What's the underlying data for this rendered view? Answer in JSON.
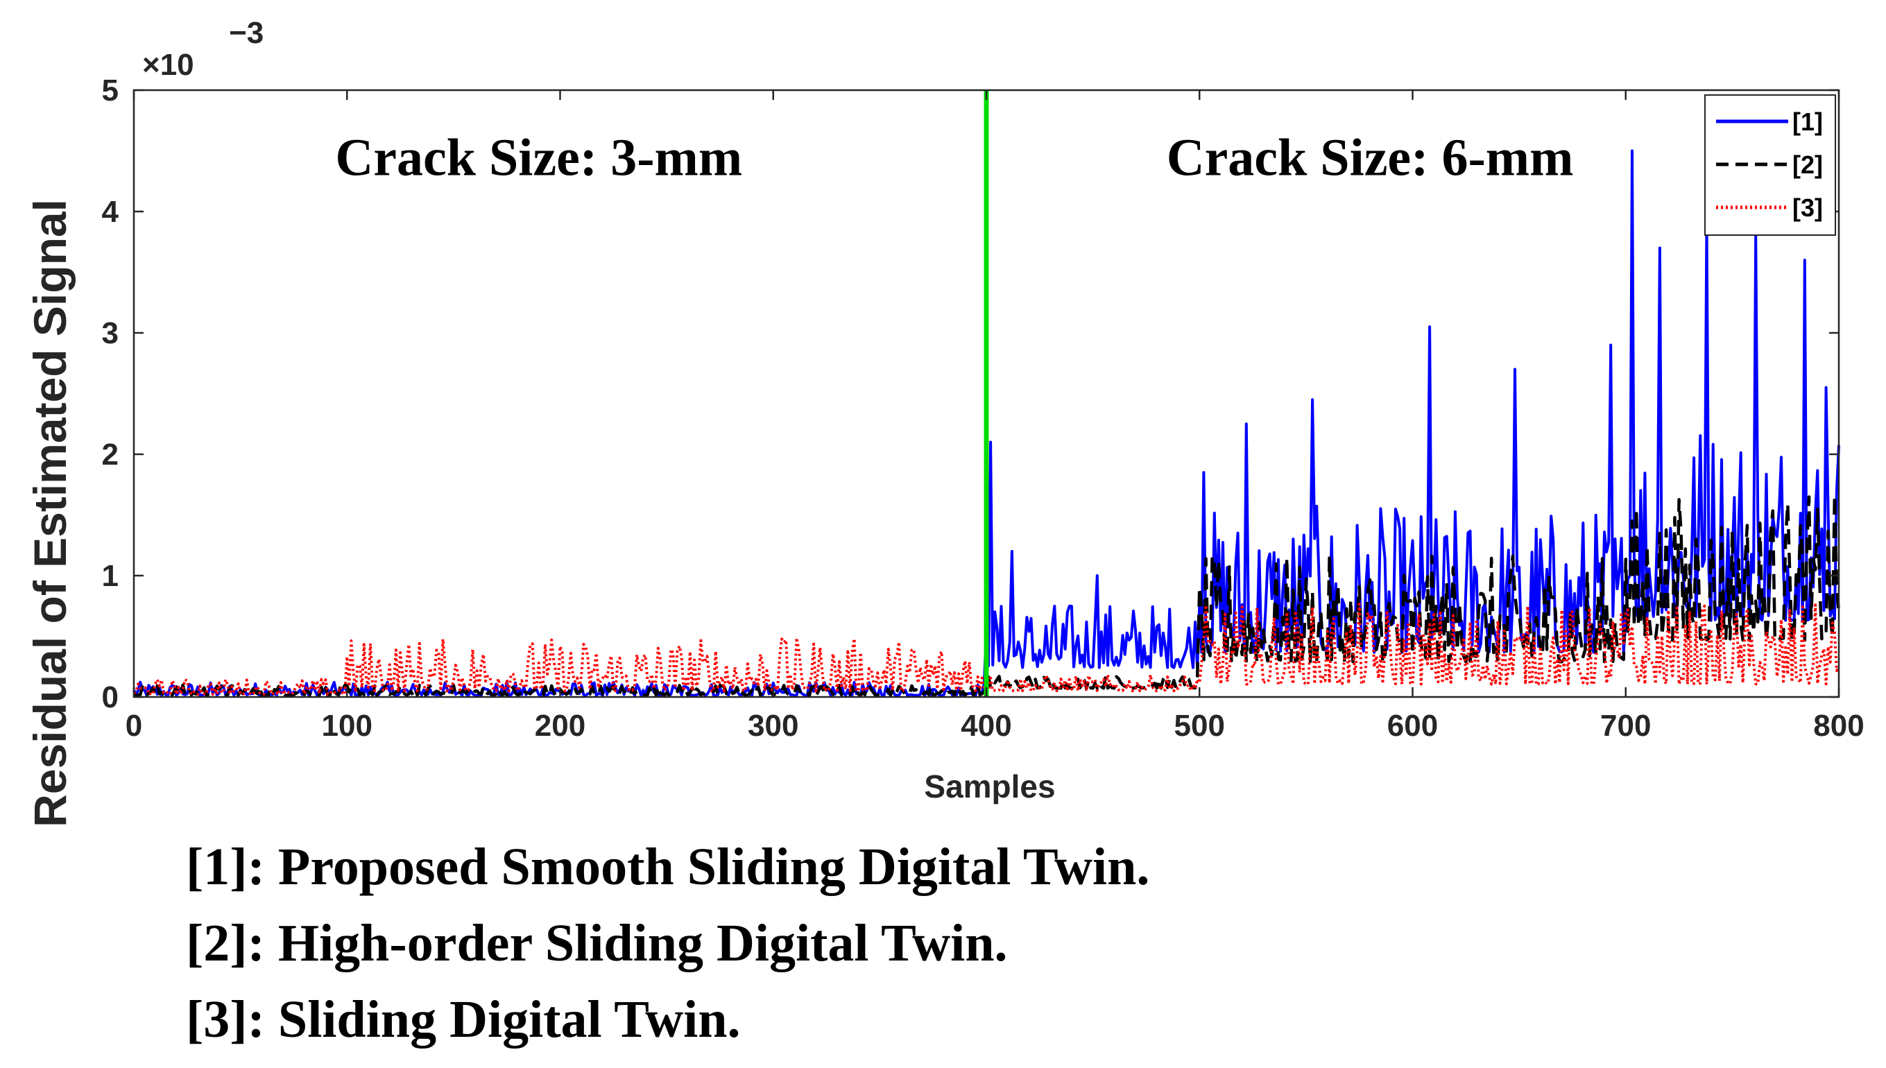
{
  "chart_data": {
    "type": "line",
    "title": "",
    "xlabel": "Samples",
    "ylabel": "Residual of Estimated Signal",
    "y_scale_label": "×10",
    "y_scale_exponent": "−3",
    "xlim": [
      0,
      800
    ],
    "ylim": [
      0,
      5
    ],
    "x_ticks": [
      "0",
      "100",
      "200",
      "300",
      "400",
      "500",
      "600",
      "700",
      "800"
    ],
    "y_ticks": [
      "0",
      "1",
      "2",
      "3",
      "4",
      "5"
    ],
    "divider_x": 400,
    "divider_color": "#00dd00",
    "annotations": [
      {
        "text": "Crack Size: 3-mm",
        "x": 190,
        "y": 4.3
      },
      {
        "text": "Crack Size: 6-mm",
        "x": 580,
        "y": 4.3
      }
    ],
    "legend": {
      "position": "top-right",
      "entries": [
        {
          "label": "[1]",
          "color": "#0000ff",
          "style": "solid"
        },
        {
          "label": "[2]",
          "color": "#000000",
          "style": "dashed"
        },
        {
          "label": "[3]",
          "color": "#ff0000",
          "style": "dotted"
        }
      ]
    },
    "series": [
      {
        "name": "[1]",
        "color": "#0000ff",
        "style": "solid",
        "segments": [
          {
            "x_start": 0,
            "x_end": 400,
            "base": 0.02,
            "amp": 0.05
          },
          {
            "x_start": 400,
            "x_end": 500,
            "base": 0.28,
            "amp": 0.25
          },
          {
            "x_start": 500,
            "x_end": 700,
            "base": 0.45,
            "amp": 0.55
          },
          {
            "x_start": 700,
            "x_end": 800,
            "base": 0.75,
            "amp": 0.8
          }
        ],
        "peaks": [
          {
            "x": 402,
            "y": 2.1
          },
          {
            "x": 412,
            "y": 1.2
          },
          {
            "x": 452,
            "y": 1.0
          },
          {
            "x": 502,
            "y": 1.85
          },
          {
            "x": 522,
            "y": 2.25
          },
          {
            "x": 553,
            "y": 2.45
          },
          {
            "x": 608,
            "y": 3.05
          },
          {
            "x": 648,
            "y": 2.7
          },
          {
            "x": 693,
            "y": 2.9
          },
          {
            "x": 703,
            "y": 4.5
          },
          {
            "x": 716,
            "y": 3.7
          },
          {
            "x": 738,
            "y": 3.9
          },
          {
            "x": 761,
            "y": 3.8
          },
          {
            "x": 784,
            "y": 3.6
          },
          {
            "x": 794,
            "y": 2.55
          }
        ]
      },
      {
        "name": "[2]",
        "color": "#000000",
        "style": "dashed",
        "segments": [
          {
            "x_start": 0,
            "x_end": 400,
            "base": 0.02,
            "amp": 0.04
          },
          {
            "x_start": 400,
            "x_end": 500,
            "base": 0.08,
            "amp": 0.05
          },
          {
            "x_start": 500,
            "x_end": 700,
            "base": 0.35,
            "amp": 0.4
          },
          {
            "x_start": 700,
            "x_end": 800,
            "base": 0.55,
            "amp": 0.55
          }
        ],
        "peaks": [
          {
            "x": 703,
            "y": 1.45
          },
          {
            "x": 733,
            "y": 1.3
          },
          {
            "x": 775,
            "y": 1.3
          }
        ]
      },
      {
        "name": "[3]",
        "color": "#ff0000",
        "style": "dotted",
        "segments": [
          {
            "x_start": 0,
            "x_end": 100,
            "base": 0.03,
            "amp": 0.06
          },
          {
            "x_start": 100,
            "x_end": 400,
            "base": 0.08,
            "amp": 0.2
          },
          {
            "x_start": 400,
            "x_end": 500,
            "base": 0.06,
            "amp": 0.06
          },
          {
            "x_start": 500,
            "x_end": 800,
            "base": 0.15,
            "amp": 0.3
          }
        ],
        "peaks": [
          {
            "x": 305,
            "y": 0.45
          },
          {
            "x": 700,
            "y": 0.7
          }
        ]
      }
    ]
  },
  "footnotes": [
    "[1]: Proposed Smooth Sliding Digital Twin.",
    "[2]: High-order Sliding Digital Twin.",
    "[3]: Sliding Digital Twin."
  ]
}
